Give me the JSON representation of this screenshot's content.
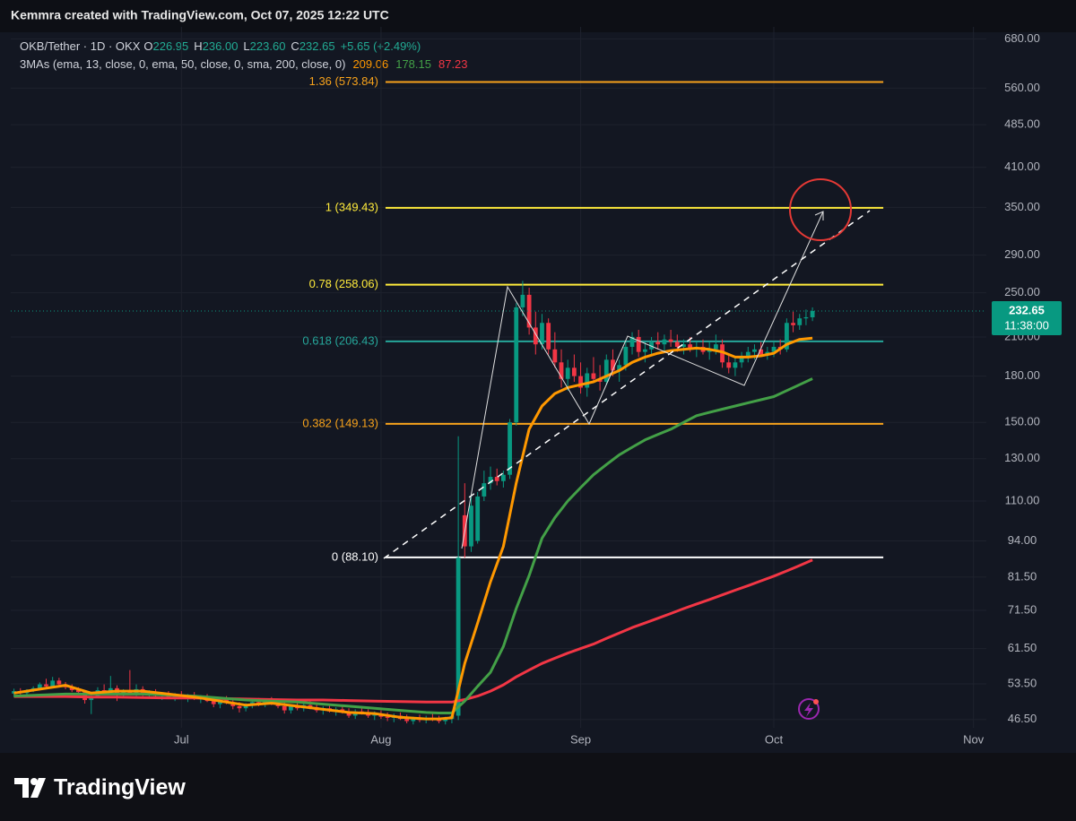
{
  "header": "Kemmra created with TradingView.com, Oct 07, 2025 12:22 UTC",
  "footer": "TradingView",
  "legend": {
    "symbol": "OKB/Tether · 1D · OKX",
    "ohlc": [
      {
        "key": "O",
        "value": "226.95"
      },
      {
        "key": "H",
        "value": "236.00"
      },
      {
        "key": "L",
        "value": "223.60"
      },
      {
        "key": "C",
        "value": "232.65"
      }
    ],
    "change": "+5.65 (+2.49%)",
    "indicator": "3MAs (ema, 13, close, 0, ema, 50, close, 0, sma, 200, close, 0)"
  },
  "price_timer": "11:38:00",
  "chart_data": {
    "type": "candlestick",
    "log_scale": true,
    "grid": true,
    "up_color": "#089981",
    "down_color": "#f23645",
    "ylim": [
      45,
      713
    ],
    "yticks": [
      {
        "value": 680,
        "label": "680.00"
      },
      {
        "value": 560,
        "label": "560.00"
      },
      {
        "value": 485,
        "label": "485.00"
      },
      {
        "value": 410,
        "label": "410.00"
      },
      {
        "value": 350,
        "label": "350.00"
      },
      {
        "value": 290,
        "label": "290.00"
      },
      {
        "value": 250,
        "label": "250.00"
      },
      {
        "value": 210,
        "label": "210.00"
      },
      {
        "value": 180,
        "label": "180.00"
      },
      {
        "value": 150,
        "label": "150.00"
      },
      {
        "value": 130,
        "label": "130.00"
      },
      {
        "value": 110,
        "label": "110.00"
      },
      {
        "value": 94,
        "label": "94.00"
      },
      {
        "value": 81.5,
        "label": "81.50"
      },
      {
        "value": 71.5,
        "label": "71.50"
      },
      {
        "value": 61.5,
        "label": "61.50"
      },
      {
        "value": 53.5,
        "label": "53.50"
      },
      {
        "value": 46.5,
        "label": "46.50"
      }
    ],
    "xlim": [
      -0.5,
      151
    ],
    "xticks": [
      {
        "value": 26,
        "label": "Jul"
      },
      {
        "value": 57,
        "label": "Aug"
      },
      {
        "value": 88,
        "label": "Sep"
      },
      {
        "value": 118,
        "label": "Oct"
      },
      {
        "value": 149,
        "label": "Nov"
      }
    ],
    "candles": [
      [
        51.5,
        52.5,
        50.8,
        52.0
      ],
      [
        52.0,
        52.6,
        51.3,
        51.6
      ],
      [
        51.6,
        52.4,
        51.0,
        52.2
      ],
      [
        52.2,
        53.0,
        51.8,
        52.6
      ],
      [
        52.6,
        53.8,
        52.2,
        53.4
      ],
      [
        53.4,
        54.6,
        52.8,
        53.0
      ],
      [
        53.0,
        55.0,
        52.6,
        54.2
      ],
      [
        54.2,
        54.8,
        53.0,
        53.4
      ],
      [
        53.4,
        53.9,
        52.4,
        52.8
      ],
      [
        52.8,
        53.4,
        51.8,
        52.2
      ],
      [
        52.2,
        52.8,
        51.4,
        51.8
      ],
      [
        51.8,
        52.2,
        49.5,
        50.2
      ],
      [
        50.2,
        51.6,
        47.5,
        51.0
      ],
      [
        51.0,
        52.8,
        50.6,
        52.2
      ],
      [
        52.2,
        53.4,
        51.4,
        51.8
      ],
      [
        51.8,
        55.2,
        51.2,
        52.6
      ],
      [
        52.6,
        53.2,
        50.0,
        51.2
      ],
      [
        51.2,
        52.4,
        50.8,
        52.0
      ],
      [
        52.0,
        56.5,
        51.2,
        51.6
      ],
      [
        51.6,
        53.4,
        51.0,
        52.4
      ],
      [
        52.4,
        53.0,
        51.0,
        51.4
      ],
      [
        51.4,
        52.2,
        50.6,
        51.8
      ],
      [
        51.8,
        52.4,
        50.8,
        51.0
      ],
      [
        51.0,
        51.8,
        50.2,
        51.4
      ],
      [
        51.4,
        52.0,
        50.6,
        50.8
      ],
      [
        50.8,
        51.6,
        50.0,
        51.2
      ],
      [
        51.2,
        52.0,
        50.4,
        50.6
      ],
      [
        50.6,
        51.4,
        49.8,
        51.0
      ],
      [
        51.0,
        51.8,
        50.2,
        50.4
      ],
      [
        50.4,
        51.2,
        49.6,
        50.8
      ],
      [
        50.8,
        51.4,
        49.8,
        50.0
      ],
      [
        50.0,
        50.8,
        48.8,
        49.4
      ],
      [
        49.4,
        50.6,
        48.6,
        50.2
      ],
      [
        50.2,
        51.0,
        49.4,
        49.8
      ],
      [
        49.8,
        50.4,
        48.4,
        49.0
      ],
      [
        49.0,
        49.8,
        47.8,
        48.6
      ],
      [
        48.6,
        49.6,
        48.0,
        49.2
      ],
      [
        49.2,
        50.2,
        48.6,
        49.8
      ],
      [
        49.8,
        50.6,
        49.0,
        49.4
      ],
      [
        49.4,
        50.2,
        48.8,
        50.0
      ],
      [
        50.0,
        50.8,
        49.2,
        49.6
      ],
      [
        49.6,
        50.4,
        48.6,
        49.0
      ],
      [
        49.0,
        49.8,
        47.6,
        48.2
      ],
      [
        48.2,
        49.4,
        47.6,
        49.0
      ],
      [
        49.0,
        49.8,
        48.2,
        48.6
      ],
      [
        48.6,
        49.6,
        48.0,
        49.2
      ],
      [
        49.2,
        50.0,
        48.4,
        48.8
      ],
      [
        48.8,
        49.4,
        47.8,
        48.2
      ],
      [
        48.2,
        49.0,
        47.4,
        48.6
      ],
      [
        48.6,
        49.4,
        47.8,
        48.0
      ],
      [
        48.0,
        48.8,
        47.2,
        48.4
      ],
      [
        48.4,
        49.2,
        47.6,
        47.8
      ],
      [
        47.8,
        48.6,
        46.8,
        47.2
      ],
      [
        47.2,
        48.4,
        46.6,
        48.0
      ],
      [
        48.0,
        48.8,
        47.4,
        47.6
      ],
      [
        47.6,
        48.4,
        46.8,
        47.2
      ],
      [
        47.2,
        48.0,
        46.4,
        47.6
      ],
      [
        47.6,
        48.2,
        46.6,
        47.0
      ],
      [
        47.0,
        47.8,
        46.2,
        46.8
      ],
      [
        46.8,
        47.6,
        46.0,
        47.2
      ],
      [
        47.2,
        47.8,
        46.4,
        46.6
      ],
      [
        46.6,
        47.4,
        45.8,
        46.2
      ],
      [
        46.2,
        47.0,
        45.6,
        46.8
      ],
      [
        46.8,
        47.4,
        46.0,
        46.4
      ],
      [
        46.4,
        47.2,
        45.8,
        46.8
      ],
      [
        46.8,
        47.6,
        46.2,
        46.6
      ],
      [
        46.6,
        47.2,
        45.8,
        46.2
      ],
      [
        46.2,
        47.0,
        45.6,
        46.6
      ],
      [
        46.6,
        48.0,
        45.8,
        47.2
      ],
      [
        47.2,
        142.0,
        46.4,
        88.0
      ],
      [
        104,
        118,
        88,
        92
      ],
      [
        92,
        112,
        90,
        108
      ],
      [
        94,
        114,
        93,
        112
      ],
      [
        112,
        124,
        110,
        118
      ],
      [
        118,
        126,
        115,
        121
      ],
      [
        121,
        125,
        117,
        119
      ],
      [
        119,
        124,
        116,
        122
      ],
      [
        122,
        152,
        120,
        150
      ],
      [
        150,
        240,
        148,
        236
      ],
      [
        236,
        262,
        228,
        248
      ],
      [
        248,
        255,
        212,
        218
      ],
      [
        218,
        232,
        196,
        204
      ],
      [
        204,
        230,
        200,
        222
      ],
      [
        222,
        226,
        196,
        200
      ],
      [
        200,
        214,
        186,
        190
      ],
      [
        190,
        200,
        172,
        178
      ],
      [
        178,
        192,
        170,
        186
      ],
      [
        186,
        196,
        176,
        180
      ],
      [
        180,
        190,
        168,
        172
      ],
      [
        172,
        186,
        166,
        182
      ],
      [
        182,
        194,
        176,
        178
      ],
      [
        178,
        188,
        170,
        176
      ],
      [
        176,
        196,
        174,
        192
      ],
      [
        192,
        200,
        180,
        184
      ],
      [
        184,
        192,
        176,
        188
      ],
      [
        188,
        206,
        184,
        202
      ],
      [
        202,
        214,
        196,
        210
      ],
      [
        210,
        216,
        194,
        198
      ],
      [
        198,
        206,
        190,
        200
      ],
      [
        200,
        210,
        196,
        206
      ],
      [
        206,
        214,
        200,
        204
      ],
      [
        204,
        212,
        198,
        208
      ],
      [
        208,
        216,
        202,
        206
      ],
      [
        206,
        212,
        198,
        202
      ],
      [
        202,
        208,
        196,
        204
      ],
      [
        204,
        210,
        198,
        200
      ],
      [
        200,
        206,
        194,
        202
      ],
      [
        202,
        208,
        196,
        198
      ],
      [
        198,
        206,
        192,
        200
      ],
      [
        200,
        212,
        196,
        204
      ],
      [
        204,
        208,
        186,
        190
      ],
      [
        190,
        196,
        182,
        186
      ],
      [
        186,
        194,
        180,
        190
      ],
      [
        190,
        198,
        186,
        194
      ],
      [
        194,
        202,
        190,
        198
      ],
      [
        198,
        204,
        192,
        200
      ],
      [
        200,
        206,
        194,
        196
      ],
      [
        196,
        202,
        192,
        198
      ],
      [
        198,
        206,
        194,
        202
      ],
      [
        202,
        208,
        196,
        200
      ],
      [
        200,
        226,
        198,
        222
      ],
      [
        222,
        232,
        214,
        220
      ],
      [
        220,
        230,
        216,
        226
      ],
      [
        226,
        234,
        220,
        227
      ],
      [
        226.95,
        236.0,
        223.6,
        232.65
      ]
    ],
    "ma": {
      "x": [
        0,
        4,
        8,
        12,
        16,
        20,
        24,
        28,
        32,
        36,
        40,
        44,
        48,
        52,
        56,
        60,
        64,
        66,
        68,
        70,
        72,
        74,
        76,
        78,
        80,
        82,
        84,
        86,
        88,
        90,
        92,
        94,
        96,
        98,
        100,
        102,
        104,
        106,
        108,
        110,
        112,
        114,
        116,
        118,
        120,
        122,
        124
      ],
      "series": [
        {
          "color": "#f23645",
          "values": [
            50.9,
            50.9,
            50.9,
            50.8,
            50.8,
            50.7,
            50.6,
            50.6,
            50.5,
            50.4,
            50.3,
            50.2,
            50.2,
            50.1,
            50.0,
            49.9,
            49.8,
            49.8,
            49.8,
            50.3,
            51,
            52,
            53.3,
            55,
            56.5,
            58,
            59.2,
            60.4,
            61.5,
            62.6,
            64,
            65.4,
            66.8,
            68,
            69.3,
            70.6,
            72,
            73.3,
            74.6,
            76,
            77.4,
            78.8,
            80.3,
            81.8,
            83.5,
            85.3,
            87.23
          ]
        },
        {
          "color": "#43a047",
          "values": [
            51,
            51.2,
            51.4,
            51.4,
            51.4,
            51.4,
            51.2,
            51,
            50.6,
            50.2,
            50,
            49.8,
            49.4,
            49,
            48.6,
            48.2,
            47.8,
            47.7,
            47.7,
            50,
            53,
            56,
            62,
            72,
            82,
            95,
            103,
            110,
            116,
            122,
            127,
            132,
            136,
            140,
            143,
            146,
            150,
            154,
            156,
            158,
            160,
            162,
            164,
            166,
            170,
            174,
            178.15
          ]
        },
        {
          "color": "#ff9800",
          "values": [
            51.6,
            52.4,
            53.2,
            51.6,
            52.0,
            52.0,
            51.4,
            50.8,
            50.0,
            49.2,
            49.6,
            49.0,
            48.4,
            47.8,
            47.6,
            46.9,
            46.6,
            46.6,
            46.8,
            58,
            68,
            80,
            92,
            118,
            146,
            160,
            168,
            172,
            174,
            176,
            180,
            184,
            190,
            194,
            197,
            199,
            200,
            201,
            200,
            198,
            194,
            194,
            195,
            197,
            204,
            208,
            209.06
          ]
        }
      ]
    },
    "level_span": [
      57.7,
      135
    ],
    "levels": [
      {
        "label": "1.36 (573.84)",
        "value": 573.84,
        "color": "#f7a21b"
      },
      {
        "label": "1 (349.43)",
        "value": 349.43,
        "color": "#ffeb3b"
      },
      {
        "label": "0.78 (258.06)",
        "value": 258.06,
        "color": "#ffeb3b"
      },
      {
        "label": "0.618 (206.43)",
        "value": 206.43,
        "color": "#26a69a"
      },
      {
        "label": "0.382 (149.13)",
        "value": 149.13,
        "color": "#f7a21b"
      },
      {
        "label": "0 (88.10)",
        "value": 88.1,
        "color": "#ffffff"
      }
    ]
  }
}
